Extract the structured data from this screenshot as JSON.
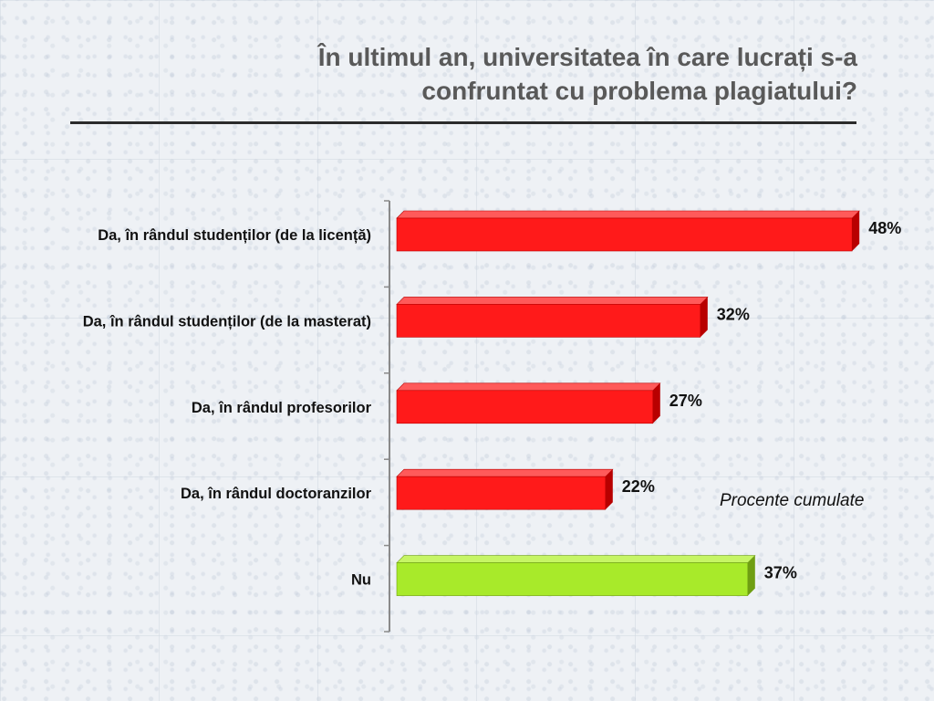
{
  "title": {
    "line1": "În ultimul an, universitatea în care lucrați s-a",
    "line2": "confruntat cu problema plagiatului?"
  },
  "annotation": "Procente cumulate",
  "colors": {
    "yes_bar": "#ff1a1a",
    "yes_bar_top": "#ff5a5a",
    "yes_bar_side": "#b80000",
    "no_bar": "#a8ea2a",
    "no_bar_top": "#c6f565",
    "no_bar_side": "#6f9e12",
    "axis": "#8a8a8a",
    "title": "#595959"
  },
  "chart_data": {
    "type": "bar",
    "orientation": "horizontal",
    "categories": [
      "Da, în rândul studenților (de la licență)",
      "Da, în rândul studenților (de la masterat)",
      "Da, în rândul profesorilor",
      "Da, în rândul doctoranzilor",
      "Nu"
    ],
    "values": [
      48,
      32,
      27,
      22,
      37
    ],
    "value_labels": [
      "48%",
      "32%",
      "27%",
      "22%",
      "37%"
    ],
    "unit": "%",
    "xlim": [
      0,
      50
    ],
    "grid": false,
    "legend": "none",
    "bar_style": "3d"
  }
}
